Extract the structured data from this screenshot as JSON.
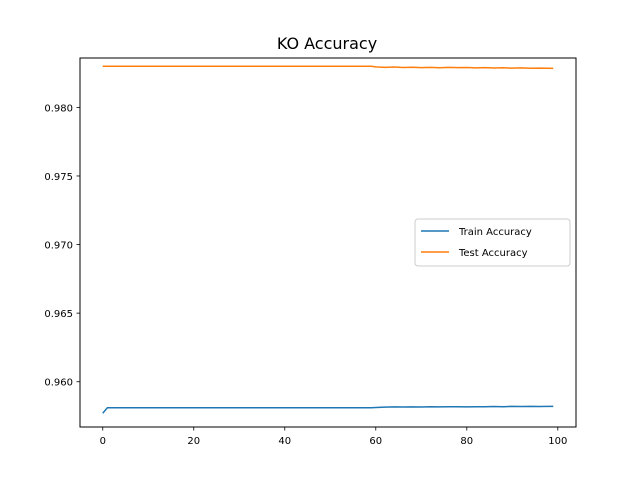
{
  "chart_data": {
    "type": "line",
    "title": "KO Accuracy",
    "xlabel": "",
    "ylabel": "",
    "xlim": [
      -5,
      104
    ],
    "ylim": [
      0.9567,
      0.9836
    ],
    "x_ticks": [
      0,
      20,
      40,
      60,
      80,
      100
    ],
    "x_tick_labels": [
      "0",
      "20",
      "40",
      "60",
      "80",
      "100"
    ],
    "y_ticks": [
      0.96,
      0.965,
      0.97,
      0.975,
      0.98
    ],
    "y_tick_labels": [
      "0.960",
      "0.965",
      "0.970",
      "0.975",
      "0.980"
    ],
    "grid": false,
    "legend_position": "center-right",
    "series": [
      {
        "name": "Train Accuracy",
        "color": "#1f77b4",
        "x": [
          0,
          1,
          5,
          10,
          20,
          30,
          40,
          50,
          55,
          59,
          60,
          62,
          64,
          66,
          68,
          70,
          72,
          74,
          76,
          78,
          80,
          82,
          84,
          86,
          88,
          90,
          92,
          94,
          96,
          98,
          99
        ],
        "y": [
          0.9577,
          0.9581,
          0.9581,
          0.9581,
          0.9581,
          0.9581,
          0.9581,
          0.9581,
          0.9581,
          0.9581,
          0.95812,
          0.95815,
          0.95817,
          0.95816,
          0.95817,
          0.95816,
          0.95818,
          0.95817,
          0.95818,
          0.95818,
          0.95817,
          0.95818,
          0.95818,
          0.95819,
          0.95818,
          0.9582,
          0.95819,
          0.9582,
          0.95819,
          0.9582,
          0.9582
        ]
      },
      {
        "name": "Test Accuracy",
        "color": "#ff7f0e",
        "x": [
          0,
          10,
          20,
          30,
          40,
          50,
          55,
          59,
          60,
          62,
          64,
          66,
          68,
          70,
          72,
          74,
          76,
          78,
          80,
          82,
          84,
          86,
          88,
          90,
          92,
          94,
          96,
          98,
          99
        ],
        "y": [
          0.983,
          0.983,
          0.983,
          0.983,
          0.983,
          0.983,
          0.983,
          0.983,
          0.98295,
          0.98292,
          0.98294,
          0.98291,
          0.98293,
          0.9829,
          0.98292,
          0.98289,
          0.98292,
          0.9829,
          0.98291,
          0.98288,
          0.9829,
          0.98287,
          0.98289,
          0.98286,
          0.98288,
          0.98285,
          0.98286,
          0.98285,
          0.98284
        ]
      }
    ]
  }
}
